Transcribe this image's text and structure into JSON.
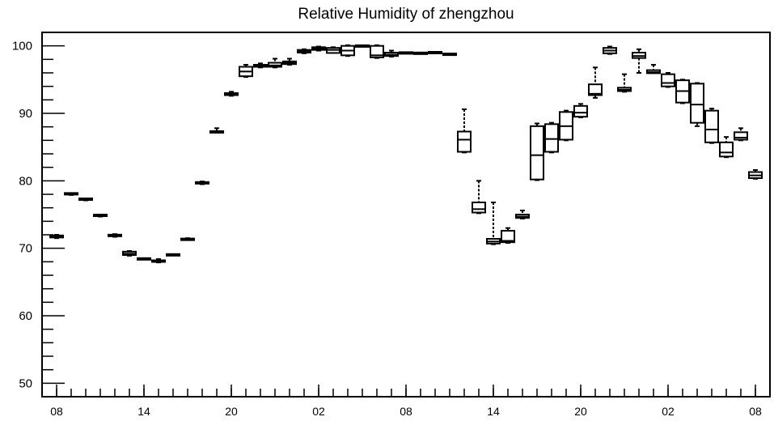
{
  "chart_data": {
    "type": "box",
    "title": "Relative Humidity of zhengzhou",
    "ylim": [
      48,
      102
    ],
    "y_ticks": [
      50,
      60,
      70,
      80,
      90,
      100
    ],
    "x_tick_labels": [
      "08",
      "14",
      "20",
      "02",
      "08",
      "14",
      "20",
      "02",
      "08"
    ],
    "grid": false,
    "colors": {
      "stroke": "#000000",
      "background": "#ffffff"
    },
    "boxes": [
      {
        "x": 8,
        "min": 71.5,
        "q1": 71.6,
        "median": 71.75,
        "q3": 71.9,
        "max": 72.0
      },
      {
        "x": 9,
        "min": 77.9,
        "q1": 78.0,
        "median": 78.05,
        "q3": 78.15,
        "max": 78.2
      },
      {
        "x": 10,
        "min": 77.1,
        "q1": 77.2,
        "median": 77.25,
        "q3": 77.35,
        "max": 77.4
      },
      {
        "x": 11,
        "min": 74.7,
        "q1": 74.8,
        "median": 74.85,
        "q3": 74.95,
        "max": 75.0
      },
      {
        "x": 12,
        "min": 71.7,
        "q1": 71.8,
        "median": 71.9,
        "q3": 72.0,
        "max": 72.1
      },
      {
        "x": 13,
        "min": 68.9,
        "q1": 69.0,
        "median": 69.2,
        "q3": 69.5,
        "max": 69.6
      },
      {
        "x": 14,
        "min": 68.3,
        "q1": 68.35,
        "median": 68.4,
        "q3": 68.5,
        "max": 68.55
      },
      {
        "x": 15,
        "min": 67.9,
        "q1": 68.0,
        "median": 68.1,
        "q3": 68.2,
        "max": 68.4
      },
      {
        "x": 16,
        "min": 68.9,
        "q1": 68.95,
        "median": 69.0,
        "q3": 69.1,
        "max": 69.15
      },
      {
        "x": 17,
        "min": 71.2,
        "q1": 71.25,
        "median": 71.3,
        "q3": 71.4,
        "max": 71.5
      },
      {
        "x": 18,
        "min": 79.5,
        "q1": 79.6,
        "median": 79.7,
        "q3": 79.8,
        "max": 79.9
      },
      {
        "x": 19,
        "min": 87.1,
        "q1": 87.15,
        "median": 87.25,
        "q3": 87.35,
        "max": 87.8
      },
      {
        "x": 20,
        "min": 92.6,
        "q1": 92.7,
        "median": 92.8,
        "q3": 93.0,
        "max": 93.2
      },
      {
        "x": 21,
        "min": 95.4,
        "q1": 95.5,
        "median": 96.2,
        "q3": 96.9,
        "max": 97.2
      },
      {
        "x": 22,
        "min": 96.8,
        "q1": 96.9,
        "median": 97.05,
        "q3": 97.2,
        "max": 97.4
      },
      {
        "x": 23,
        "min": 96.8,
        "q1": 96.9,
        "median": 97.1,
        "q3": 97.5,
        "max": 98.1
      },
      {
        "x": 0,
        "min": 97.2,
        "q1": 97.3,
        "median": 97.5,
        "q3": 97.7,
        "max": 98.1
      },
      {
        "x": 1,
        "min": 98.9,
        "q1": 99.0,
        "median": 99.2,
        "q3": 99.4,
        "max": 99.5
      },
      {
        "x": 2,
        "min": 99.3,
        "q1": 99.4,
        "median": 99.6,
        "q3": 99.8,
        "max": 99.9
      },
      {
        "x": 3,
        "min": 98.9,
        "q1": 98.95,
        "median": 99.4,
        "q3": 99.7,
        "max": 99.8
      },
      {
        "x": 4,
        "min": 98.5,
        "q1": 98.6,
        "median": 99.3,
        "q3": 100.0,
        "max": 100.1
      },
      {
        "x": 5,
        "min": 99.9,
        "q1": 99.95,
        "median": 100.0,
        "q3": 100.0,
        "max": 100.05
      },
      {
        "x": 6,
        "min": 98.2,
        "q1": 98.3,
        "median": 98.6,
        "q3": 100.0,
        "max": 100.1
      },
      {
        "x": 7,
        "min": 98.4,
        "q1": 98.5,
        "median": 98.7,
        "q3": 99.0,
        "max": 99.3
      },
      {
        "x": 8,
        "min": 98.8,
        "q1": 98.85,
        "median": 98.95,
        "q3": 99.05,
        "max": 99.1
      },
      {
        "x": 9,
        "min": 98.8,
        "q1": 98.85,
        "median": 98.9,
        "q3": 98.95,
        "max": 99.0
      },
      {
        "x": 10,
        "min": 98.9,
        "q1": 98.95,
        "median": 99.0,
        "q3": 99.05,
        "max": 99.1
      },
      {
        "x": 11,
        "min": 98.6,
        "q1": 98.65,
        "median": 98.75,
        "q3": 98.85,
        "max": 98.9
      },
      {
        "x": 12,
        "min": 84.2,
        "q1": 84.3,
        "median": 86.1,
        "q3": 87.3,
        "max": 90.6
      },
      {
        "x": 13,
        "min": 75.2,
        "q1": 75.3,
        "median": 75.8,
        "q3": 76.8,
        "max": 80.0
      },
      {
        "x": 14,
        "min": 70.6,
        "q1": 70.7,
        "median": 71.0,
        "q3": 71.4,
        "max": 76.8
      },
      {
        "x": 15,
        "min": 70.8,
        "q1": 70.9,
        "median": 71.1,
        "q3": 72.6,
        "max": 73.0
      },
      {
        "x": 16,
        "min": 74.4,
        "q1": 74.5,
        "median": 74.7,
        "q3": 75.0,
        "max": 75.6
      },
      {
        "x": 17,
        "min": 80.1,
        "q1": 80.2,
        "median": 83.8,
        "q3": 88.1,
        "max": 88.5
      },
      {
        "x": 18,
        "min": 84.2,
        "q1": 84.3,
        "median": 86.2,
        "q3": 88.4,
        "max": 88.6
      },
      {
        "x": 19,
        "min": 86.0,
        "q1": 86.1,
        "median": 88.1,
        "q3": 90.2,
        "max": 90.4
      },
      {
        "x": 20,
        "min": 89.4,
        "q1": 89.5,
        "median": 90.1,
        "q3": 91.1,
        "max": 91.4
      },
      {
        "x": 21,
        "min": 92.3,
        "q1": 92.7,
        "median": 92.9,
        "q3": 94.3,
        "max": 96.8
      },
      {
        "x": 22,
        "min": 98.8,
        "q1": 98.9,
        "median": 99.3,
        "q3": 99.7,
        "max": 99.9
      },
      {
        "x": 23,
        "min": 93.2,
        "q1": 93.3,
        "median": 93.5,
        "q3": 93.8,
        "max": 95.8
      },
      {
        "x": 0,
        "min": 96.0,
        "q1": 98.2,
        "median": 98.5,
        "q3": 99.0,
        "max": 99.5
      },
      {
        "x": 1,
        "min": 95.9,
        "q1": 95.95,
        "median": 96.1,
        "q3": 96.4,
        "max": 97.2
      },
      {
        "x": 2,
        "min": 93.9,
        "q1": 94.0,
        "median": 94.5,
        "q3": 95.8,
        "max": 96.0
      },
      {
        "x": 3,
        "min": 91.5,
        "q1": 91.6,
        "median": 93.3,
        "q3": 94.9,
        "max": 95.0
      },
      {
        "x": 4,
        "min": 88.1,
        "q1": 88.6,
        "median": 91.3,
        "q3": 94.4,
        "max": 94.5
      },
      {
        "x": 5,
        "min": 85.6,
        "q1": 85.7,
        "median": 87.6,
        "q3": 90.4,
        "max": 90.7
      },
      {
        "x": 6,
        "min": 83.5,
        "q1": 83.6,
        "median": 84.2,
        "q3": 85.7,
        "max": 86.5
      },
      {
        "x": 7,
        "min": 86.0,
        "q1": 86.1,
        "median": 86.4,
        "q3": 87.2,
        "max": 87.8
      },
      {
        "x": 8,
        "min": 80.3,
        "q1": 80.4,
        "median": 80.8,
        "q3": 81.3,
        "max": 81.6
      }
    ]
  }
}
